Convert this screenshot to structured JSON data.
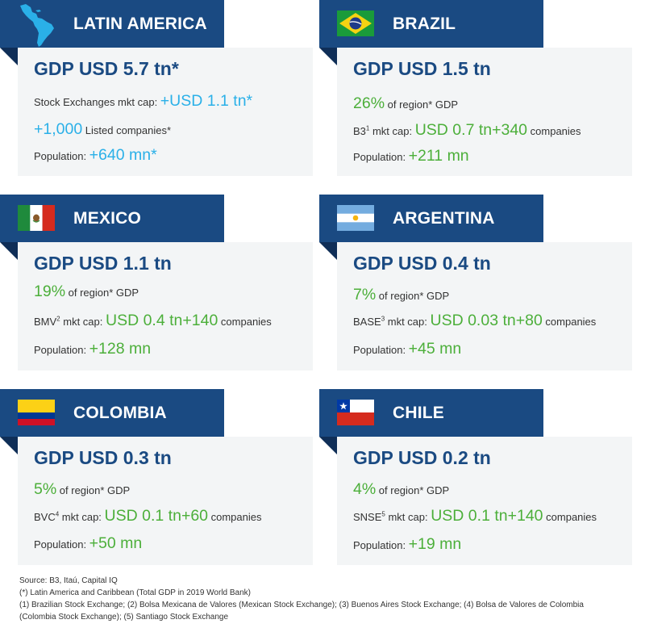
{
  "cards": {
    "latam": {
      "name": "LATIN AMERICA",
      "gdp": "GDP USD 5.7 tn*",
      "line1_label": "Stock Exchanges mkt cap: ",
      "line1_value": "+USD 1.1 tn*",
      "line2_value": "+1,000",
      "line2_label": " Listed companies*",
      "pop_label": "Population: ",
      "pop_value": "+640 mn*",
      "icon": "latin-america-map-icon"
    },
    "brazil": {
      "name": "BRAZIL",
      "gdp": "GDP USD 1.5 tn",
      "share_value": "26%",
      "share_label": " of region* GDP",
      "exch_label": "B3",
      "exch_sup": "1",
      "mktcap_label": " mkt cap: ",
      "mktcap_value": "USD 0.7 tn",
      "companies_value": "+340",
      "companies_label": " companies",
      "pop_label": "Population: ",
      "pop_value": "+211 mn",
      "icon": "brazil-flag-icon"
    },
    "mexico": {
      "name": "MEXICO",
      "gdp": "GDP USD 1.1 tn",
      "share_value": "19%",
      "share_label": " of region* GDP",
      "exch_label": "BMV",
      "exch_sup": "2",
      "mktcap_label": " mkt cap: ",
      "mktcap_value": "USD 0.4 tn",
      "companies_value": "+140",
      "companies_label": " companies",
      "pop_label": "Population: ",
      "pop_value": "+128 mn",
      "icon": "mexico-flag-icon"
    },
    "argentina": {
      "name": "ARGENTINA",
      "gdp": "GDP USD 0.4 tn",
      "share_value": "7%",
      "share_label": " of region* GDP",
      "exch_label": "BASE",
      "exch_sup": "3",
      "mktcap_label": " mkt cap: ",
      "mktcap_value": "USD 0.03 tn",
      "companies_value": "+80",
      "companies_label": " companies",
      "pop_label": "Population: ",
      "pop_value": "+45 mn",
      "icon": "argentina-flag-icon"
    },
    "colombia": {
      "name": "COLOMBIA",
      "gdp": "GDP USD 0.3 tn",
      "share_value": "5%",
      "share_label": " of region* GDP",
      "exch_label": "BVC",
      "exch_sup": "4",
      "mktcap_label": " mkt cap: ",
      "mktcap_value": "USD 0.1 tn",
      "companies_value": "+60",
      "companies_label": " companies",
      "pop_label": "Population: ",
      "pop_value": "+50 mn",
      "icon": "colombia-flag-icon"
    },
    "chile": {
      "name": "CHILE",
      "gdp": "GDP USD 0.2 tn",
      "share_value": "4%",
      "share_label": " of region* GDP",
      "exch_label": "SNSE",
      "exch_sup": "5",
      "mktcap_label": " mkt cap: ",
      "mktcap_value": "USD 0.1 tn",
      "companies_value": "+140",
      "companies_label": " companies",
      "pop_label": "Population: ",
      "pop_value": "+19 mn",
      "icon": "chile-flag-icon"
    }
  },
  "footer": {
    "source": "Source: B3, Itaú, Capital IQ",
    "note1": "(*) Latin America and Caribbean (Total GDP in 2019 World Bank)",
    "note2": "(1) Brazilian Stock Exchange; (2) Bolsa Mexicana de Valores (Mexican Stock Exchange); (3) Buenos Aires Stock Exchange; (4) Bolsa de Valores de Colombia",
    "note3": "(Colombia Stock Exchange); (5) Santiago Stock Exchange"
  },
  "colors": {
    "banner": "#1a4a82",
    "banner_fold": "#0f2e57",
    "card_bg": "#f3f5f6",
    "gdp_text": "#1a4a82",
    "accent_green": "#4caf3a",
    "accent_blue": "#2ab0e8"
  }
}
